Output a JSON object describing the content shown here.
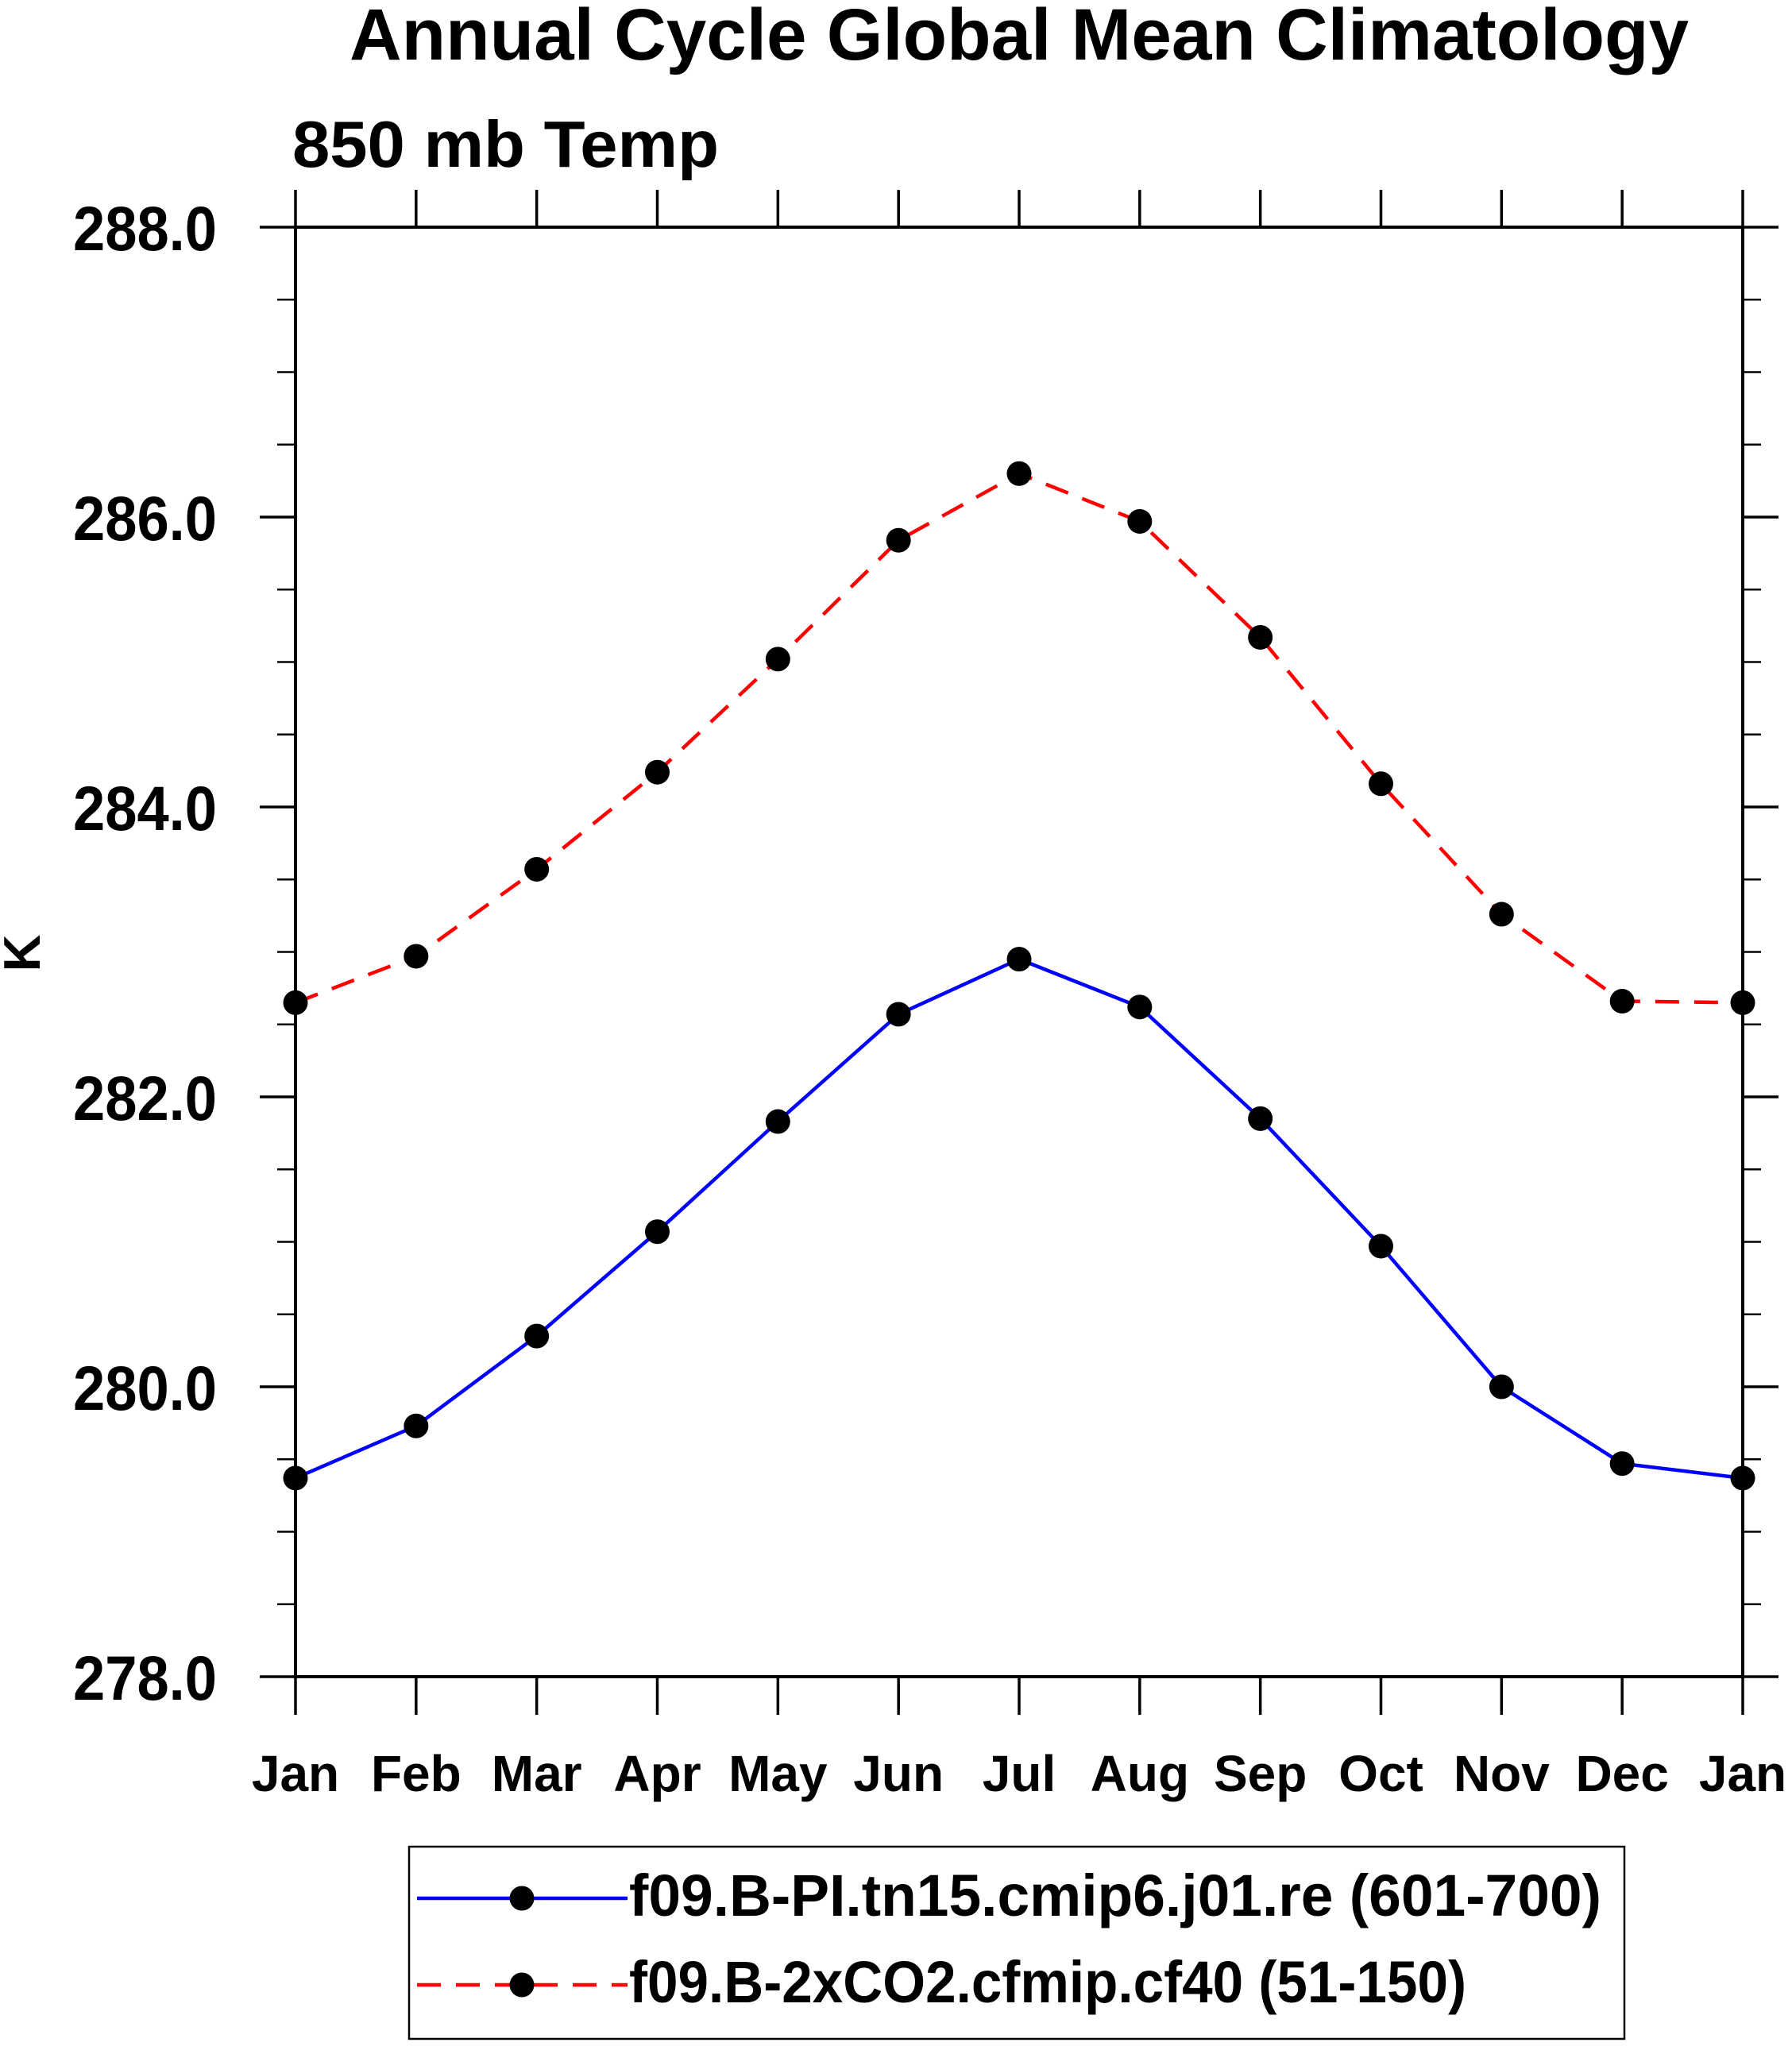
{
  "chart_data": {
    "type": "line",
    "title": "Annual Cycle Global Mean Climatology",
    "subtitle": "850 mb Temp",
    "xlabel": "",
    "ylabel": "K",
    "categories": [
      "Jan",
      "Feb",
      "Mar",
      "Apr",
      "May",
      "Jun",
      "Jul",
      "Aug",
      "Sep",
      "Oct",
      "Nov",
      "Dec",
      "Jan"
    ],
    "ylim": [
      278.0,
      288.0
    ],
    "ytick_major_step": 2.0,
    "ytick_minor_step": 0.5,
    "ytick_label_format": "one-decimal",
    "grid": "off",
    "legend_position": "bottom-center",
    "series": [
      {
        "name": "f09.B-PI.tn15.cmip6.j01.re (601-700)",
        "line_style": "solid",
        "line_color": "#0000ff",
        "marker": "filled-circle",
        "marker_color": "#000000",
        "values": [
          279.37,
          279.73,
          280.35,
          281.07,
          281.83,
          282.57,
          282.95,
          282.62,
          281.85,
          280.97,
          280.0,
          279.47,
          279.37
        ]
      },
      {
        "name": "f09.B-2xCO2.cfmip.cf40 (51-150)",
        "line_style": "dashed",
        "line_color": "#ff0000",
        "marker": "filled-circle",
        "marker_color": "#000000",
        "values": [
          282.65,
          282.97,
          283.57,
          284.24,
          285.02,
          285.84,
          286.3,
          285.97,
          285.17,
          284.16,
          283.26,
          282.66,
          282.65
        ]
      }
    ]
  },
  "colors": {
    "axis": "#000000",
    "background": "#ffffff",
    "text": "#000000",
    "series_pi": "#0000ff",
    "series_2xco2": "#ff0000",
    "marker": "#000000"
  }
}
